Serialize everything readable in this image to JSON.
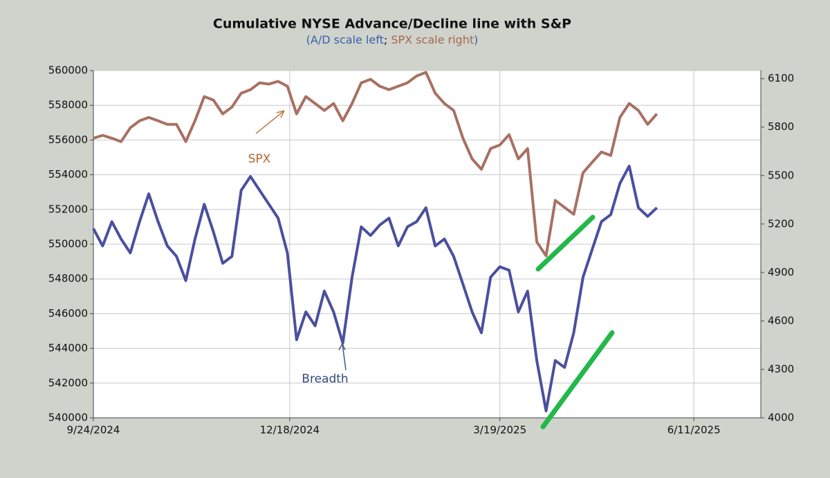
{
  "chart_data": {
    "type": "line",
    "title": "Cumulative NYSE Advance/Decline line with S&P",
    "subtitle": [
      "(",
      "A/D scale left",
      "; ",
      "SPX scale right",
      ")"
    ],
    "annotations": [
      "SPX",
      "Breadth"
    ],
    "x": [
      "9/24/2024",
      "9/28/2024",
      "10/2/2024",
      "10/6/2024",
      "10/10/2024",
      "10/14/2024",
      "10/18/2024",
      "10/22/2024",
      "10/26/2024",
      "10/30/2024",
      "11/3/2024",
      "11/7/2024",
      "11/11/2024",
      "11/15/2024",
      "11/19/2024",
      "11/23/2024",
      "11/27/2024",
      "12/1/2024",
      "12/5/2024",
      "12/9/2024",
      "12/13/2024",
      "12/17/2024",
      "12/21/2024",
      "12/25/2024",
      "12/29/2024",
      "1/2/2025",
      "1/6/2025",
      "1/10/2025",
      "1/14/2025",
      "1/18/2025",
      "1/22/2025",
      "1/26/2025",
      "1/30/2025",
      "2/3/2025",
      "2/7/2025",
      "2/11/2025",
      "2/15/2025",
      "2/19/2025",
      "2/23/2025",
      "2/27/2025",
      "3/3/2025",
      "3/7/2025",
      "3/11/2025",
      "3/15/2025",
      "3/19/2025",
      "3/23/2025",
      "3/27/2025",
      "3/31/2025",
      "4/4/2025",
      "4/8/2025",
      "4/12/2025",
      "4/16/2025",
      "4/20/2025",
      "4/24/2025",
      "4/28/2025",
      "5/2/2025",
      "5/6/2025",
      "5/10/2025",
      "5/14/2025",
      "5/18/2025",
      "5/22/2025",
      "5/26/2025"
    ],
    "series": [
      {
        "name": "Breadth",
        "color": "#4b4f9e",
        "axis": "y",
        "values": [
          550900,
          549900,
          551300,
          550300,
          549500,
          551300,
          552900,
          551300,
          549900,
          549300,
          547900,
          550300,
          552300,
          550700,
          548900,
          549300,
          553100,
          553900,
          553100,
          552300,
          551500,
          549500,
          544500,
          546100,
          545300,
          547300,
          546100,
          544300,
          548100,
          551000,
          550500,
          551100,
          551500,
          549900,
          551000,
          551300,
          552100,
          549900,
          550300,
          549300,
          547700,
          546100,
          544900,
          548100,
          548700,
          548500,
          546100,
          547300,
          543300,
          540400,
          543300,
          542900,
          544900,
          548100,
          549700,
          551300,
          551700,
          553500,
          554500,
          552100,
          551600,
          552100
        ]
      },
      {
        "name": "SPX",
        "color": "#a87063",
        "axis": "y2",
        "values": [
          5731,
          5749,
          5731,
          5710,
          5796,
          5839,
          5860,
          5839,
          5817,
          5817,
          5710,
          5839,
          5989,
          5967,
          5882,
          5924,
          6010,
          6032,
          6074,
          6066,
          6083,
          6053,
          5882,
          5989,
          5946,
          5903,
          5946,
          5839,
          5946,
          6074,
          6096,
          6053,
          6032,
          6053,
          6074,
          6117,
          6139,
          6010,
          5946,
          5903,
          5731,
          5603,
          5539,
          5667,
          5689,
          5753,
          5603,
          5667,
          5089,
          5003,
          5346,
          5303,
          5260,
          5517,
          5582,
          5646,
          5624,
          5860,
          5946,
          5903,
          5817,
          5882
        ]
      }
    ],
    "xlim": [
      "9/24/2024",
      "7/10/2025"
    ],
    "xticks": [
      "9/24/2024",
      "12/18/2024",
      "3/19/2025",
      "6/11/2025"
    ],
    "ylim": [
      540000,
      560000
    ],
    "yticks": [
      540000,
      542000,
      544000,
      546000,
      548000,
      550000,
      552000,
      554000,
      556000,
      558000,
      560000
    ],
    "y2lim": [
      4000,
      6150
    ],
    "y2ticks": [
      4000,
      4300,
      4600,
      4900,
      5200,
      5500,
      5800,
      6100
    ],
    "grid": true
  }
}
